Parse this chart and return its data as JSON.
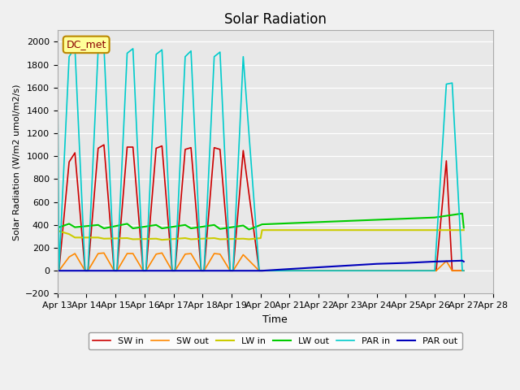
{
  "title": "Solar Radiation",
  "ylabel": "Solar Radiation (W/m2 umol/m2/s)",
  "xlabel": "Time",
  "annotation": "DC_met",
  "ylim": [
    -200,
    2100
  ],
  "background_color": "#e8e8e8",
  "plot_bg_color": "#e8e8e8",
  "xtick_labels": [
    "Apr 13",
    "Apr 14",
    "Apr 15",
    "Apr 16",
    "Apr 17",
    "Apr 18",
    "Apr 19",
    "Apr 20",
    "Apr 21",
    "Apr 22",
    "Apr 23",
    "Apr 24",
    "Apr 25",
    "Apr 26",
    "Apr 27",
    "Apr 28"
  ],
  "colors": {
    "SW_in": "#cc0000",
    "SW_out": "#ff8800",
    "LW_in": "#cccc00",
    "LW_out": "#00cc00",
    "PAR_in": "#00cccc",
    "PAR_out": "#0000bb"
  },
  "series": {
    "SW_in": {
      "x": [
        0,
        0.05,
        0.4,
        0.6,
        0.95,
        1.05,
        1.4,
        1.6,
        1.95,
        2.05,
        2.4,
        2.6,
        2.95,
        3.05,
        3.4,
        3.6,
        3.95,
        4.05,
        4.4,
        4.6,
        4.95,
        5.05,
        5.4,
        5.6,
        5.95,
        6.05,
        6.4,
        6.95,
        7.05,
        13.05,
        13.4,
        13.6,
        13.95,
        14.0
      ],
      "y": [
        0,
        0,
        950,
        1030,
        0,
        0,
        1070,
        1100,
        0,
        0,
        1080,
        1080,
        0,
        0,
        1070,
        1090,
        0,
        0,
        1060,
        1075,
        0,
        0,
        1075,
        1060,
        0,
        0,
        1050,
        0,
        0,
        0,
        960,
        0,
        0,
        0
      ]
    },
    "SW_out": {
      "x": [
        0,
        0.05,
        0.4,
        0.6,
        0.95,
        1.05,
        1.4,
        1.6,
        1.95,
        2.05,
        2.4,
        2.6,
        2.95,
        3.05,
        3.4,
        3.6,
        3.95,
        4.05,
        4.4,
        4.6,
        4.95,
        5.05,
        5.4,
        5.6,
        5.95,
        6.05,
        6.4,
        6.95,
        7.05,
        13.05,
        13.4,
        13.6,
        13.95,
        14.0
      ],
      "y": [
        0,
        0,
        120,
        150,
        0,
        0,
        150,
        155,
        0,
        0,
        150,
        150,
        0,
        0,
        145,
        155,
        0,
        0,
        145,
        150,
        0,
        0,
        150,
        145,
        0,
        0,
        140,
        0,
        0,
        0,
        85,
        0,
        0,
        0
      ]
    },
    "LW_in": {
      "x": [
        0,
        0.4,
        0.6,
        1.4,
        1.6,
        2.4,
        2.6,
        3.4,
        3.6,
        4.4,
        4.6,
        5.4,
        5.6,
        6.4,
        6.6,
        7.0,
        7.05,
        8,
        9,
        10,
        11,
        12,
        13,
        14.0
      ],
      "y": [
        350,
        320,
        290,
        290,
        280,
        285,
        275,
        280,
        270,
        285,
        275,
        285,
        275,
        280,
        275,
        285,
        355,
        355,
        355,
        355,
        355,
        355,
        355,
        355
      ]
    },
    "LW_out": {
      "x": [
        0,
        0.4,
        0.6,
        1.4,
        1.6,
        2.4,
        2.6,
        3.4,
        3.6,
        4.4,
        4.6,
        5.4,
        5.6,
        6.4,
        6.6,
        7.0,
        7.05,
        8,
        9,
        10,
        11,
        12,
        13,
        13.95,
        14.0
      ],
      "y": [
        375,
        410,
        380,
        400,
        370,
        410,
        370,
        400,
        370,
        400,
        370,
        400,
        365,
        395,
        360,
        400,
        405,
        415,
        425,
        435,
        445,
        455,
        465,
        500,
        375
      ]
    },
    "PAR_in": {
      "x": [
        0,
        0.05,
        0.4,
        0.6,
        0.95,
        1.05,
        1.4,
        1.6,
        1.95,
        2.05,
        2.4,
        2.6,
        2.95,
        3.05,
        3.4,
        3.6,
        3.95,
        4.05,
        4.4,
        4.6,
        4.95,
        5.05,
        5.4,
        5.6,
        5.95,
        6.05,
        6.4,
        6.95,
        7.0,
        7.05,
        8,
        9,
        10,
        11,
        12,
        13,
        13.4,
        13.6,
        13.95,
        14.0
      ],
      "y": [
        1780,
        0,
        1870,
        1950,
        0,
        0,
        1930,
        1960,
        0,
        0,
        1900,
        1940,
        0,
        0,
        1890,
        1930,
        0,
        0,
        1870,
        1920,
        0,
        0,
        1870,
        1910,
        0,
        0,
        1870,
        0,
        0,
        0,
        0,
        0,
        0,
        0,
        0,
        0,
        1630,
        1640,
        0,
        0
      ]
    },
    "PAR_out": {
      "x": [
        0,
        7.0,
        7.05,
        8,
        9,
        10,
        11,
        12,
        13,
        13.95,
        14.0
      ],
      "y": [
        0,
        0,
        0,
        15,
        30,
        45,
        60,
        68,
        80,
        88,
        80
      ]
    }
  }
}
